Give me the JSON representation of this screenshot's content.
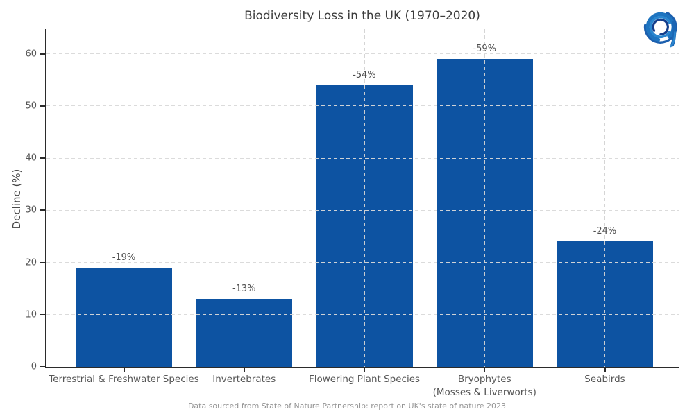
{
  "figure": {
    "title": "Biodiversity Loss in the UK (1970–2020)",
    "footer": "Data sourced from State of Nature Partnership: report on UK's state of nature 2023",
    "logo_icon": "abstract-blue-a-logo"
  },
  "colors": {
    "bar": "#0d53a2",
    "axis_spine": "#2b2b2b",
    "grid": "#d9d9d9",
    "title_text": "#3c3c3c",
    "tick_text": "#565656",
    "value_label_text": "#4d4d4d",
    "footer_text": "#949494",
    "background": "#ffffff"
  },
  "chart_data": {
    "type": "bar",
    "title": "Biodiversity Loss in the UK (1970–2020)",
    "xlabel": "",
    "ylabel": "Decline (%)",
    "categories": [
      "Terrestrial & Freshwater Species",
      "Invertebrates",
      "Flowering Plant Species",
      "Bryophytes\n(Mosses & Liverworts)",
      "Seabirds"
    ],
    "values": [
      19,
      13,
      54,
      59,
      24
    ],
    "bar_labels": [
      "-19%",
      "-13%",
      "-54%",
      "-59%",
      "-24%"
    ],
    "signed_values": [
      -19,
      -13,
      -54,
      -59,
      -24
    ],
    "yticks": [
      0,
      10,
      20,
      30,
      40,
      50,
      60
    ],
    "ylim": [
      0,
      65
    ],
    "grid": "dashed light-gray horizontal lines at each y tick and vertical lines at each category center, drawn over bars",
    "legend": "none",
    "bar_color": "#0d53a2",
    "annotation": "Data sourced from State of Nature Partnership: report on UK's state of nature 2023"
  }
}
